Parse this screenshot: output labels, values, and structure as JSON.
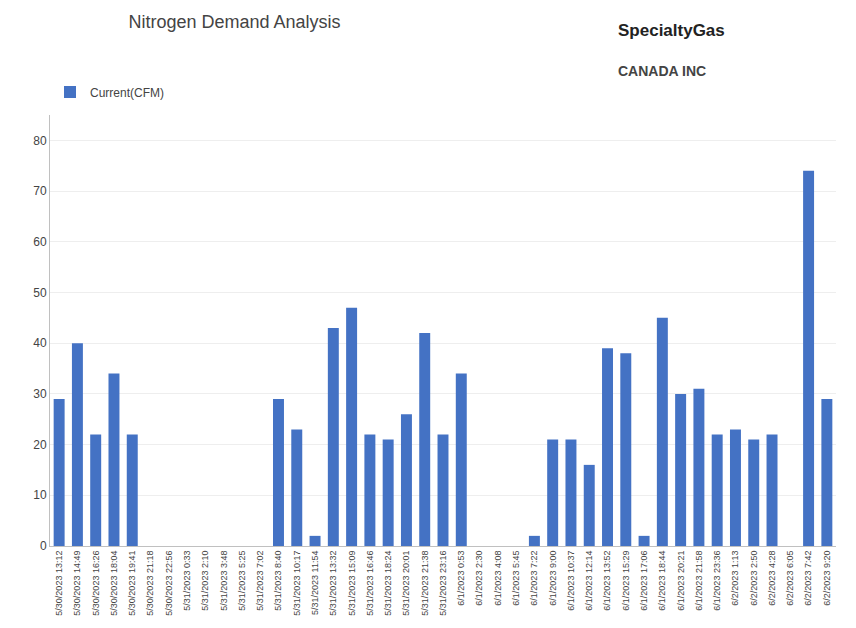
{
  "chart_data": {
    "type": "bar",
    "title": "Nitrogen Demand Analysis",
    "annotations": [
      "SpecialtyGas",
      "CANADA INC"
    ],
    "categories": [
      "5/30/2023 13:12",
      "5/30/2023 14:49",
      "5/30/2023 16:26",
      "5/30/2023 18:04",
      "5/30/2023 19:41",
      "5/30/2023 21:18",
      "5/30/2023 22:56",
      "5/31/2023 0:33",
      "5/31/2023 2:10",
      "5/31/2023 3:48",
      "5/31/2023 5:25",
      "5/31/2023 7:02",
      "5/31/2023 8:40",
      "5/31/2023 10:17",
      "5/31/2023 11:54",
      "5/31/2023 13:32",
      "5/31/2023 15:09",
      "5/31/2023 16:46",
      "5/31/2023 18:24",
      "5/31/2023 20:01",
      "5/31/2023 21:38",
      "5/31/2023 23:16",
      "6/1/2023 0:53",
      "6/1/2023 2:30",
      "6/1/2023 4:08",
      "6/1/2023 5:45",
      "6/1/2023 7:22",
      "6/1/2023 9:00",
      "6/1/2023 10:37",
      "6/1/2023 12:14",
      "6/1/2023 13:52",
      "6/1/2023 15:29",
      "6/1/2023 17:06",
      "6/1/2023 18:44",
      "6/1/2023 20:21",
      "6/1/2023 21:58",
      "6/1/2023 23:36",
      "6/2/2023 1:13",
      "6/2/2023 2:50",
      "6/2/2023 4:28",
      "6/2/2023 6:05",
      "6/2/2023 7:42",
      "6/2/2023 9:20"
    ],
    "series": [
      {
        "name": "Current(CFM)",
        "color": "#4472C4",
        "values": [
          29,
          40,
          22,
          34,
          22,
          0,
          0,
          0,
          0,
          0,
          0,
          0,
          29,
          23,
          2,
          43,
          47,
          22,
          21,
          26,
          42,
          22,
          34,
          0,
          0,
          0,
          2,
          21,
          21,
          16,
          39,
          38,
          2,
          45,
          30,
          31,
          22,
          23,
          21,
          22,
          0,
          74,
          29
        ]
      }
    ],
    "ylim": [
      0,
      85
    ],
    "yticks": [
      0,
      10,
      20,
      30,
      40,
      50,
      60,
      70,
      80
    ],
    "grid": true,
    "legend": "upper left"
  }
}
